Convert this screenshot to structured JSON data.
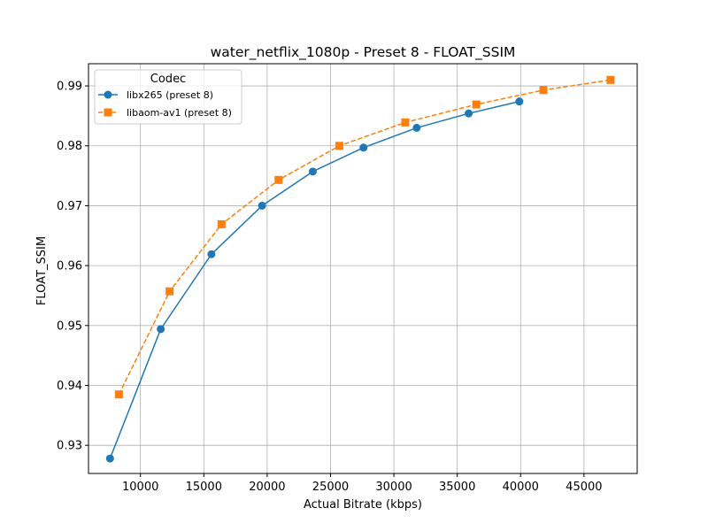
{
  "chart_data": {
    "type": "line",
    "title": "water_netflix_1080p - Preset 8 - FLOAT_SSIM",
    "xlabel": "Actual Bitrate (kbps)",
    "ylabel": "FLOAT_SSIM",
    "xlim": [
      5900,
      49200
    ],
    "ylim": [
      0.9253,
      0.9937
    ],
    "xticks": [
      10000,
      15000,
      20000,
      25000,
      30000,
      35000,
      40000,
      45000
    ],
    "xtick_labels": [
      "10000",
      "15000",
      "20000",
      "25000",
      "30000",
      "35000",
      "40000",
      "45000"
    ],
    "yticks": [
      0.93,
      0.94,
      0.95,
      0.96,
      0.97,
      0.98,
      0.99
    ],
    "ytick_labels": [
      "0.93",
      "0.94",
      "0.95",
      "0.96",
      "0.97",
      "0.98",
      "0.99"
    ],
    "grid": true,
    "legend": {
      "title": "Codec",
      "placement": "top-left"
    },
    "series": [
      {
        "name": "libx265 (preset 8)",
        "color": "#1f77b4",
        "marker": "circle",
        "line_style": "solid",
        "x": [
          7600,
          11600,
          15600,
          19600,
          23600,
          27600,
          31800,
          35900,
          39900
        ],
        "y": [
          0.9278,
          0.9494,
          0.9619,
          0.97,
          0.9757,
          0.9797,
          0.983,
          0.9854,
          0.9874
        ]
      },
      {
        "name": "libaom-av1 (preset 8)",
        "color": "#ff7f0e",
        "marker": "square",
        "line_style": "dashed",
        "x": [
          8300,
          12300,
          16400,
          20900,
          25700,
          30900,
          36500,
          41800,
          47100
        ],
        "y": [
          0.9385,
          0.9557,
          0.9669,
          0.9743,
          0.98,
          0.9839,
          0.9869,
          0.9893,
          0.991
        ]
      }
    ]
  }
}
